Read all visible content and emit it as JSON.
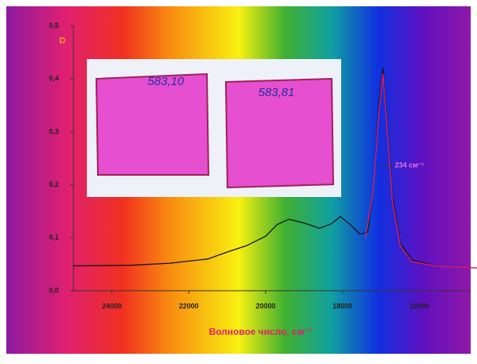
{
  "chart_data": {
    "type": "line",
    "ylabel": "D",
    "xlabel": "Волновое число, см⁻¹",
    "annotation": "234 см⁻¹",
    "photo_labels": [
      "583,10",
      "583,81"
    ],
    "xlim": [
      25000,
      14500
    ],
    "xticks": [
      24000,
      22000,
      20000,
      18000,
      16000
    ],
    "ylim": [
      0,
      0.5
    ],
    "yticks": [
      {
        "value": 0,
        "label": "0,0"
      },
      {
        "value": 0.1,
        "label": "0,1"
      },
      {
        "value": 0.2,
        "label": "0,2"
      },
      {
        "value": 0.3,
        "label": "0,3"
      },
      {
        "value": 0.4,
        "label": "0,4"
      },
      {
        "value": 0.5,
        "label": "0,5"
      }
    ],
    "series": [
      {
        "color": "#111111",
        "x": [
          25000,
          23500,
          22500,
          21500,
          21000,
          20500,
          20000,
          19700,
          19400,
          19000,
          18600,
          18300,
          18050,
          17800,
          17550,
          17350,
          17200,
          17050,
          16950,
          16850,
          16700,
          16500,
          16200,
          15500,
          14500
        ],
        "values": [
          0.047,
          0.048,
          0.052,
          0.06,
          0.073,
          0.085,
          0.103,
          0.125,
          0.135,
          0.128,
          0.118,
          0.126,
          0.14,
          0.125,
          0.107,
          0.11,
          0.19,
          0.355,
          0.42,
          0.33,
          0.18,
          0.09,
          0.058,
          0.046,
          0.043
        ]
      },
      {
        "color": "#e0206a",
        "x": [
          17400,
          17200,
          17050,
          16950,
          16850,
          16700,
          16500,
          16200,
          15500,
          14500
        ],
        "values": [
          0.1,
          0.19,
          0.34,
          0.41,
          0.32,
          0.17,
          0.085,
          0.055,
          0.046,
          0.043
        ]
      }
    ]
  }
}
